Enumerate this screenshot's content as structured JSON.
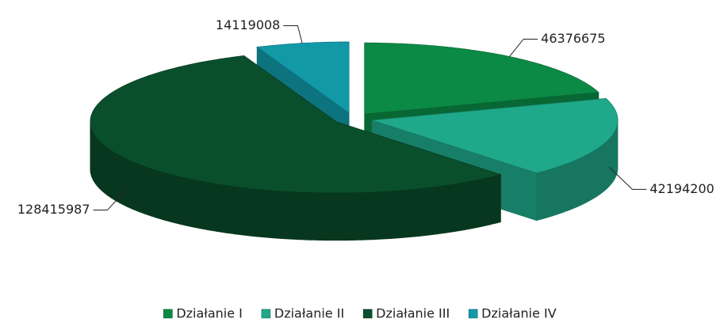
{
  "chart_data": {
    "type": "pie3d",
    "categories": [
      "Działanie I",
      "Działanie II",
      "Działanie III",
      "Działanie IV"
    ],
    "values": [
      46376675,
      42194200,
      128415987,
      14119008
    ],
    "colors": [
      "#0b8a45",
      "#1fa889",
      "#0a4f2b",
      "#1199a8"
    ],
    "legend": "bottom"
  }
}
